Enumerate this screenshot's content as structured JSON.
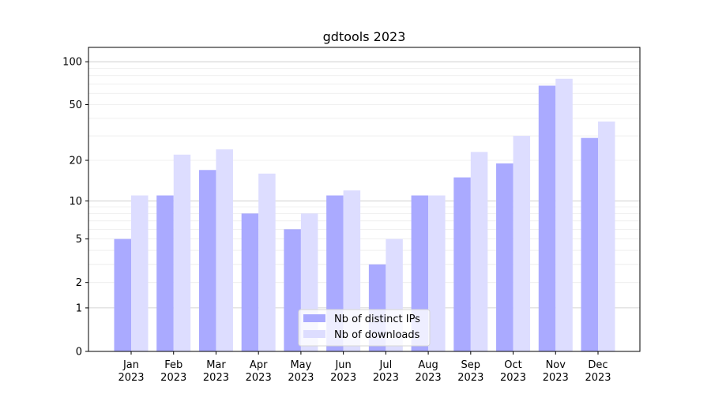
{
  "chart_data": {
    "type": "bar",
    "title": "gdtools 2023",
    "xlabel": "",
    "ylabel": "",
    "y_scale": "log10(y+1)",
    "ylim": [
      0,
      126
    ],
    "y_ticks": [
      0,
      1,
      2,
      5,
      10,
      20,
      50,
      100
    ],
    "grid": "horizontal, major at 1/10/100, minor between",
    "legend_position": "bottom-center",
    "categories": [
      "Jan\n2023",
      "Feb\n2023",
      "Mar\n2023",
      "Apr\n2023",
      "May\n2023",
      "Jun\n2023",
      "Jul\n2023",
      "Aug\n2023",
      "Sep\n2023",
      "Oct\n2023",
      "Nov\n2023",
      "Dec\n2023"
    ],
    "series": [
      {
        "name": "Nb of distinct IPs",
        "color": "#aaaaff",
        "values": [
          5,
          11,
          17,
          8,
          6,
          11,
          3,
          11,
          15,
          19,
          68,
          29
        ]
      },
      {
        "name": "Nb of downloads",
        "color": "#ddddff",
        "values": [
          11,
          22,
          24,
          16,
          8,
          12,
          5,
          11,
          23,
          30,
          76,
          38
        ]
      }
    ]
  }
}
